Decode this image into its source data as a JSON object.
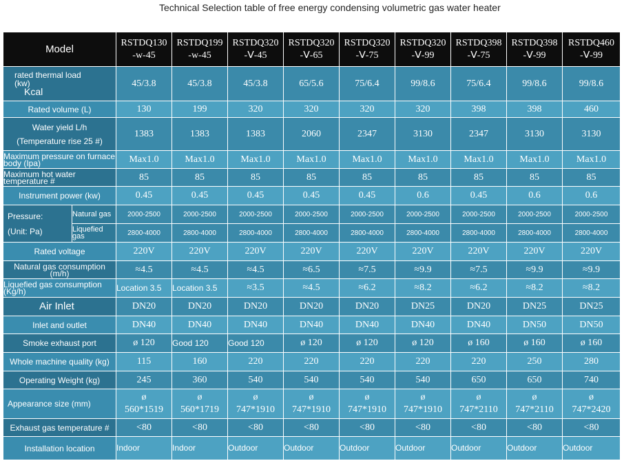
{
  "title": "Technical Selection table of free energy condensing volumetric gas water heater",
  "header": {
    "model_label": "Model",
    "models": [
      [
        "RSTDQ130",
        "-w-45"
      ],
      [
        "RSTDQ199",
        "-w-45"
      ],
      [
        "RSTDQ320",
        "-Ⅴ-45"
      ],
      [
        "RSTDQ320",
        "-Ⅴ-65"
      ],
      [
        "RSTDQ320",
        "-Ⅴ-75"
      ],
      [
        "RSTDQ320",
        "-Ⅴ-99"
      ],
      [
        "RSTDQ398",
        "-Ⅴ-75"
      ],
      [
        "RSTDQ398",
        "-Ⅴ-99"
      ],
      [
        "RSTDQ460",
        "-Ⅴ-99"
      ]
    ]
  },
  "rows": {
    "thermal_load": {
      "label1": "rated thermal load",
      "label2": "(kw)",
      "label3": "Kcal",
      "values": [
        "45/3.8",
        "45/3.8",
        "45/3.8",
        "65/5.6",
        "75/6.4",
        "99/8.6",
        "75/6.4",
        "99/8.6",
        "99/8.6"
      ]
    },
    "volume": {
      "label": "Rated volume (L)",
      "values": [
        "130",
        "199",
        "320",
        "320",
        "320",
        "320",
        "398",
        "398",
        "460"
      ]
    },
    "water_yield": {
      "label1": "Water yield L/h",
      "label2": "(Temperature rise 25 #)",
      "values": [
        "1383",
        "1383",
        "1383",
        "2060",
        "2347",
        "3130",
        "2347",
        "3130",
        "3130"
      ]
    },
    "max_pressure": {
      "label": "Maximum pressure on furnace body (Ipa)",
      "values": [
        "Max1.0",
        "Max1.0",
        "Max1.0",
        "Max1.0",
        "Max1.0",
        "Max1.0",
        "Max1.0",
        "Max1.0",
        "Max1.0"
      ]
    },
    "max_hot_water": {
      "label": "Maximum hot water temperature #",
      "values": [
        "85",
        "85",
        "85",
        "85",
        "85",
        "85",
        "85",
        "85",
        "85"
      ]
    },
    "instrument_power": {
      "label": "Instrument power (kw)",
      "values": [
        "0.45",
        "0.45",
        "0.45",
        "0.45",
        "0.45",
        "0.6",
        "0.45",
        "0.6",
        "0.6"
      ]
    },
    "pressure": {
      "label1": "Pressure:",
      "label2": "(Unit: Pa)",
      "natural_label": "Natural gas",
      "natural_values": [
        "2000-2500",
        "2000-2500",
        "2000-2500",
        "2000-2500",
        "2000-2500",
        "2000-2500",
        "2000-2500",
        "2000-2500",
        "2000-2500"
      ],
      "liquefied_label": "Liquefied gas",
      "liquefied_values": [
        "2800-4000",
        "2800-4000",
        "2800-4000",
        "2800-4000",
        "2800-4000",
        "2800-4000",
        "2800-4000",
        "2800-4000",
        "2800-4000"
      ]
    },
    "rated_voltage": {
      "label": "Rated voltage",
      "values": [
        "220V",
        "220V",
        "220V",
        "220V",
        "220V",
        "220V",
        "220V",
        "220V",
        "220V"
      ]
    },
    "natural_gas_consumption": {
      "label": "Natural gas consumption (m/h)",
      "values": [
        "≈4.5",
        "≈4.5",
        "≈4.5",
        "≈6.5",
        "≈7.5",
        "≈9.9",
        "≈7.5",
        "≈9.9",
        "≈9.9"
      ]
    },
    "liquefied_gas_consumption": {
      "label": "Liquefied gas consumption (Kg/h)",
      "values": [
        "Location 3.5",
        "Location 3.5",
        "≈3.5",
        "≈4.5",
        "≈6.2",
        "≈8.2",
        "≈6.2",
        "≈8.2",
        "≈8.2"
      ]
    },
    "air_inlet": {
      "label": "Air Inlet",
      "values": [
        "DN20",
        "DN20",
        "DN20",
        "DN20",
        "DN20",
        "DN25",
        "DN20",
        "DN25",
        "DN25"
      ]
    },
    "inlet_outlet": {
      "label": "Inlet and outlet",
      "values": [
        "DN40",
        "DN40",
        "DN40",
        "DN40",
        "DN40",
        "DN40",
        "DN40",
        "DN50",
        "DN50"
      ]
    },
    "smoke_exhaust": {
      "label": "Smoke exhaust port",
      "values": [
        "ø 120",
        "Good 120",
        "Good 120",
        "ø 120",
        "ø 120",
        "ø 120",
        "ø 160",
        "ø 160",
        "ø 160"
      ]
    },
    "machine_quality": {
      "label": "Whole machine quality (kg)",
      "values": [
        "115",
        "160",
        "220",
        "220",
        "220",
        "220",
        "220",
        "250",
        "280"
      ]
    },
    "operating_weight": {
      "label": "Operating Weight (kg)",
      "values": [
        "245",
        "360",
        "540",
        "540",
        "540",
        "540",
        "650",
        "650",
        "740"
      ]
    },
    "appearance_size": {
      "label": "Appearance size (mm)",
      "prefix": "ø",
      "values": [
        "560*1519",
        "560*1719",
        "747*1910",
        "747*1910",
        "747*1910",
        "747*1910",
        "747*2110",
        "747*2110",
        "747*2420"
      ]
    },
    "exhaust_temp": {
      "label": "Exhaust gas temperature #",
      "values": [
        "<80",
        "<80",
        "<80",
        "<80",
        "<80",
        "<80",
        "<80",
        "<80",
        "<80"
      ]
    },
    "installation": {
      "label": "Installation location",
      "values": [
        "Indoor",
        "Indoor",
        "Outdoor",
        "Outdoor",
        "Outdoor",
        "Outdoor",
        "Outdoor",
        "Outdoor",
        "Outdoor"
      ]
    }
  }
}
